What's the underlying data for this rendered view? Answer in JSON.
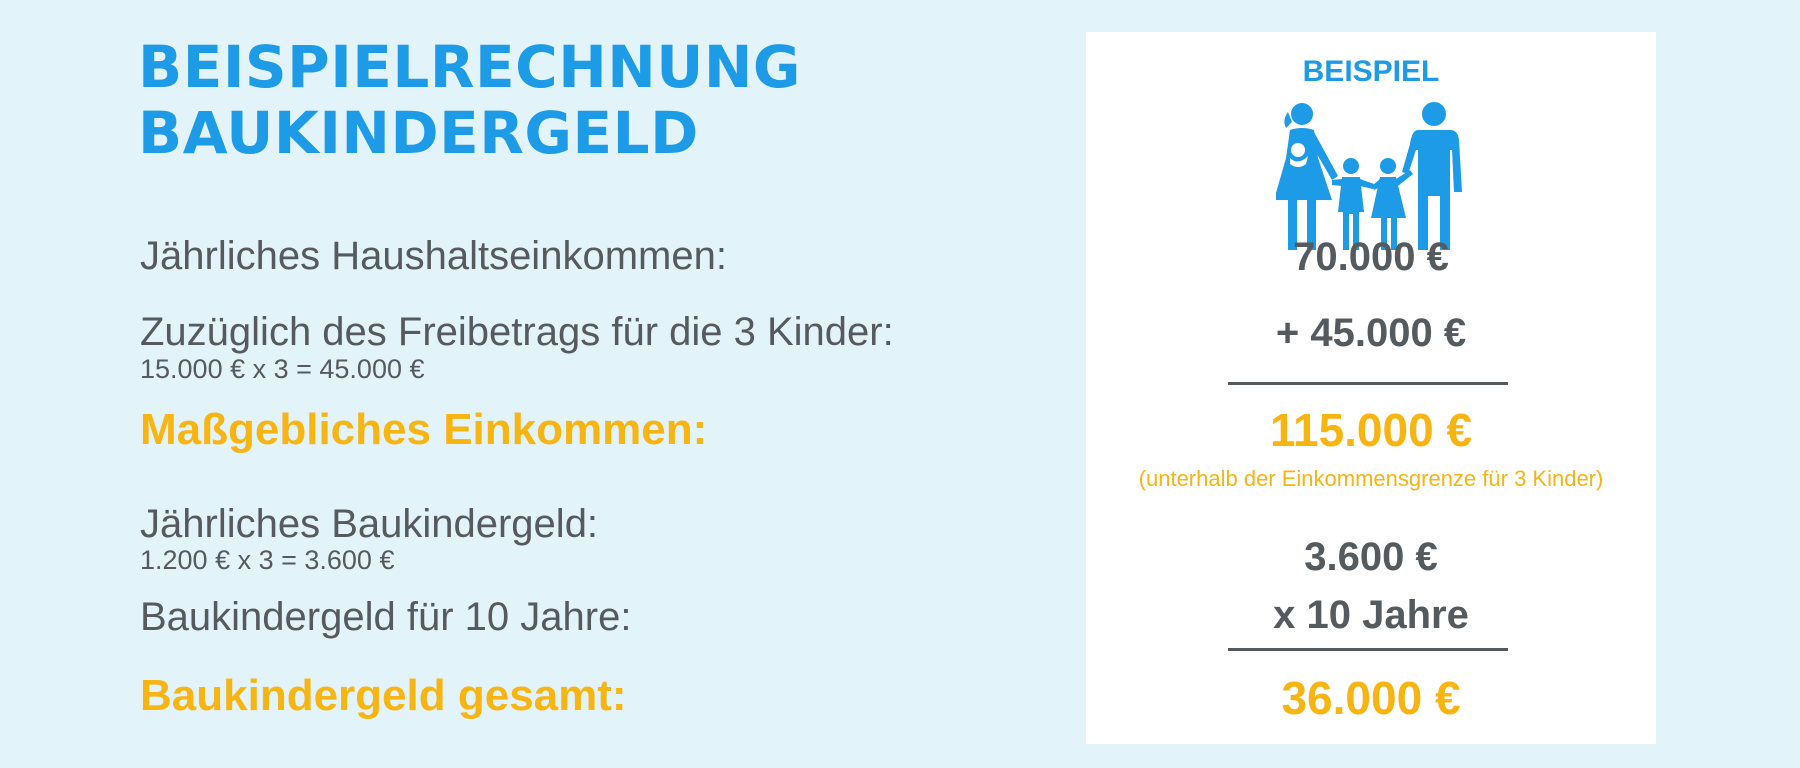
{
  "title": {
    "line1": "BEISPIELRECHNUNG",
    "line2": "BAUKINDERGELD"
  },
  "rows": {
    "income_label": "Jährliches Haushaltseinkommen:",
    "allowance_label": "Zuzüglich des Freibetrags für die 3 Kinder:",
    "allowance_calc": "15.000 € x 3 = 45.000 €",
    "relevant_label": "Maßgebliches Einkommen:",
    "annual_label": "Jährliches Baukindergeld:",
    "annual_calc": "1.200 € x 3 = 3.600 €",
    "ten_years_label": "Baukindergeld für 10 Jahre:",
    "total_label": "Baukindergeld gesamt:"
  },
  "panel": {
    "badge": "BEISPIEL",
    "icon": "family-icon",
    "income_value": "70.000 €",
    "allowance_value": "+  45.000 €",
    "relevant_value": "115.000 €",
    "relevant_note": "(unterhalb der Einkommensgrenze für 3 Kinder)",
    "annual_value": "3.600 €",
    "years_value": "x 10 Jahre",
    "total_value": "36.000 €"
  },
  "colors": {
    "background": "#e3f3fa",
    "title_blue": "#1d9be6",
    "highlight_orange": "#f8b411",
    "text_gray": "#555a5e",
    "panel": "#ffffff"
  }
}
